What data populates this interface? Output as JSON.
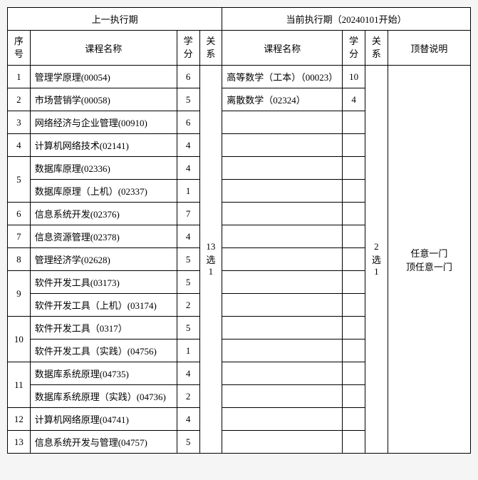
{
  "headers": {
    "prev_period": "上一执行期",
    "cur_period": "当前执行期（20240101开始）",
    "seq": "序号",
    "course": "课程名称",
    "credit": "学分",
    "relation": "关系",
    "note": "顶替说明"
  },
  "prev_relation": "13 选 1",
  "cur_relation": "2 选 1",
  "note_text": "任意一门 顶任意一门",
  "left_rows": [
    {
      "seq": "1",
      "name": "管理学原理(00054)",
      "credit": "6"
    },
    {
      "seq": "2",
      "name": "市场营销学(00058)",
      "credit": "5"
    },
    {
      "seq": "3",
      "name": "网络经济与企业管理(00910)",
      "credit": "6"
    },
    {
      "seq": "4",
      "name": "计算机网络技术(02141)",
      "credit": "4"
    },
    {
      "seq": "5",
      "name": "数据库原理(02336)",
      "credit": "4"
    },
    {
      "seq": "",
      "name": "数据库原理（上机）(02337)",
      "credit": "1"
    },
    {
      "seq": "6",
      "name": "信息系统开发(02376)",
      "credit": "7"
    },
    {
      "seq": "7",
      "name": "信息资源管理(02378)",
      "credit": "4"
    },
    {
      "seq": "8",
      "name": "管理经济学(02628)",
      "credit": "5"
    },
    {
      "seq": "9",
      "name": "软件开发工具(03173)",
      "credit": "5"
    },
    {
      "seq": "",
      "name": "软件开发工具（上机）(03174)",
      "credit": "2"
    },
    {
      "seq": "10",
      "name": "软件开发工具（0317）",
      "credit": "5"
    },
    {
      "seq": "",
      "name": "软件开发工具（实践）(04756)",
      "credit": "1"
    },
    {
      "seq": "11",
      "name": "数据库系统原理(04735)",
      "credit": "4"
    },
    {
      "seq": "",
      "name": "数据库系统原理（实践）(04736)",
      "credit": "2"
    },
    {
      "seq": "12",
      "name": "计算机网络原理(04741)",
      "credit": "4"
    },
    {
      "seq": "13",
      "name": "信息系统开发与管理(04757)",
      "credit": "5"
    }
  ],
  "right_rows": [
    {
      "name": "高等数学（工本）（00023）",
      "credit": "10"
    },
    {
      "name": "离散数学（02324）",
      "credit": "4"
    }
  ],
  "layout": {
    "col_widths": {
      "seq": 30,
      "prev_course": 195,
      "prev_credit": 30,
      "prev_rel": 30,
      "cur_course": 160,
      "cur_credit": 30,
      "cur_rel": 30,
      "note": 110
    }
  }
}
